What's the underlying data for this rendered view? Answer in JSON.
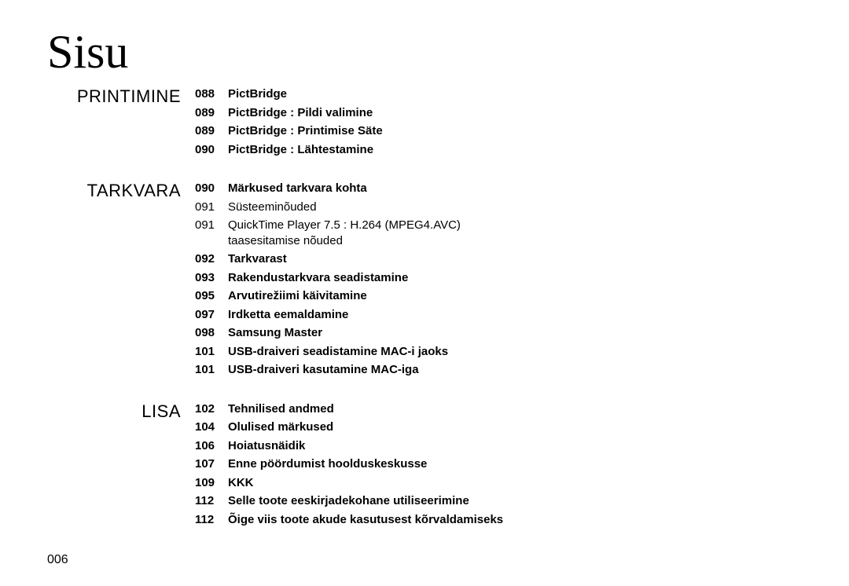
{
  "title": "Sisu",
  "page_number": "006",
  "sections": [
    {
      "label": "PRINTIMINE",
      "entries": [
        {
          "page": "088",
          "text": "PictBridge",
          "bold": true
        },
        {
          "page": "089",
          "text": "PictBridge : Pildi valimine",
          "bold": true
        },
        {
          "page": "089",
          "text": "PictBridge : Printimise Säte",
          "bold": true
        },
        {
          "page": "090",
          "text": "PictBridge : Lähtestamine",
          "bold": true
        }
      ]
    },
    {
      "label": "TARKVARA",
      "entries": [
        {
          "page": "090",
          "text": "Märkused tarkvara kohta",
          "bold": true
        },
        {
          "page": "091",
          "text": "Süsteeminõuded",
          "bold": false
        },
        {
          "page": "091",
          "text": "QuickTime Player 7.5 : H.264 (MPEG4.AVC) taasesitamise nõuded",
          "bold": false
        },
        {
          "page": "092",
          "text": "Tarkvarast",
          "bold": true
        },
        {
          "page": "093",
          "text": "Rakendustarkvara seadistamine",
          "bold": true
        },
        {
          "page": "095",
          "text": "Arvutirežiimi käivitamine",
          "bold": true
        },
        {
          "page": "097",
          "text": "Irdketta eemaldamine",
          "bold": true
        },
        {
          "page": "098",
          "text": "Samsung Master",
          "bold": true
        },
        {
          "page": "101",
          "text": "USB-draiveri seadistamine MAC-i jaoks",
          "bold": true
        },
        {
          "page": "101",
          "text": "USB-draiveri kasutamine MAC-iga",
          "bold": true
        }
      ]
    },
    {
      "label": "LISA",
      "entries": [
        {
          "page": "102",
          "text": "Tehnilised andmed",
          "bold": true
        },
        {
          "page": "104",
          "text": "Olulised märkused",
          "bold": true
        },
        {
          "page": "106",
          "text": "Hoiatusnäidik",
          "bold": true
        },
        {
          "page": "107",
          "text": "Enne pöördumist hoolduskeskusse",
          "bold": true
        },
        {
          "page": "109",
          "text": "KKK",
          "bold": true
        },
        {
          "page": "112",
          "text": "Selle toote eeskirjadekohane utiliseerimine",
          "bold": true
        },
        {
          "page": "112",
          "text": "Õige viis toote akude kasutusest kõrvaldamiseks",
          "bold": true
        }
      ]
    }
  ]
}
